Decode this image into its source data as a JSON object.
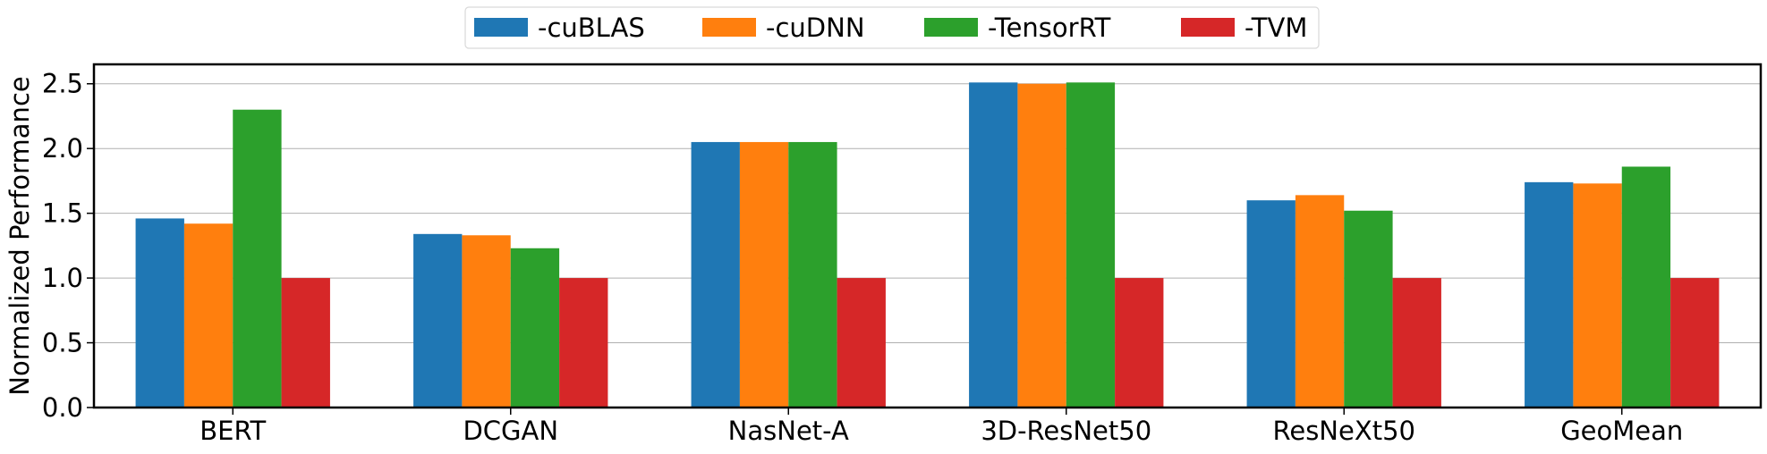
{
  "chart_data": {
    "type": "bar",
    "title": "",
    "xlabel": "",
    "ylabel": "Normalized Performance",
    "ylim": [
      0,
      2.65
    ],
    "yticks": [
      0.0,
      0.5,
      1.0,
      1.5,
      2.0,
      2.5
    ],
    "ytick_labels": [
      "0.0",
      "0.5",
      "1.0",
      "1.5",
      "2.0",
      "2.5"
    ],
    "grid": "horizontal",
    "legend_placement": "top-center",
    "categories": [
      "BERT",
      "DCGAN",
      "NasNet-A",
      "3D-ResNet50",
      "ResNeXt50",
      "GeoMean"
    ],
    "series": [
      {
        "name": "-cuBLAS",
        "color": "#1f77b4",
        "values": [
          1.46,
          1.34,
          2.05,
          2.51,
          1.6,
          1.74
        ]
      },
      {
        "name": "-cuDNN",
        "color": "#ff7f0e",
        "values": [
          1.42,
          1.33,
          2.05,
          2.5,
          1.64,
          1.73
        ]
      },
      {
        "name": "-TensorRT",
        "color": "#2ca02c",
        "values": [
          2.3,
          1.23,
          2.05,
          2.51,
          1.52,
          1.86
        ]
      },
      {
        "name": "-TVM",
        "color": "#d62728",
        "values": [
          1.0,
          1.0,
          1.0,
          1.0,
          1.0,
          1.0
        ]
      }
    ]
  }
}
